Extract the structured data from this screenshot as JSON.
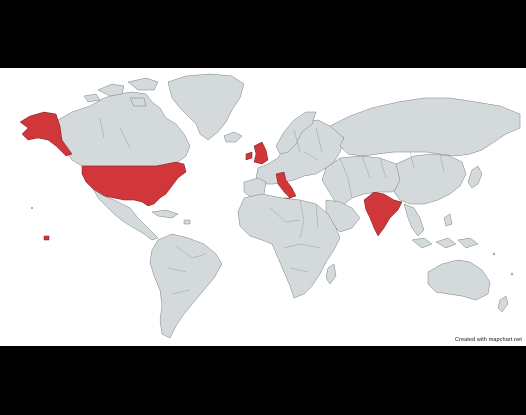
{
  "map": {
    "credit": "Created with mapchart.net",
    "colors": {
      "background": "#000000",
      "ocean": "#ffffff",
      "land": "#d4dadc",
      "highlight": "#d0363a",
      "border": "#7a7f82"
    },
    "highlighted_countries": [
      "United States",
      "United Kingdom",
      "Italy",
      "India"
    ]
  }
}
